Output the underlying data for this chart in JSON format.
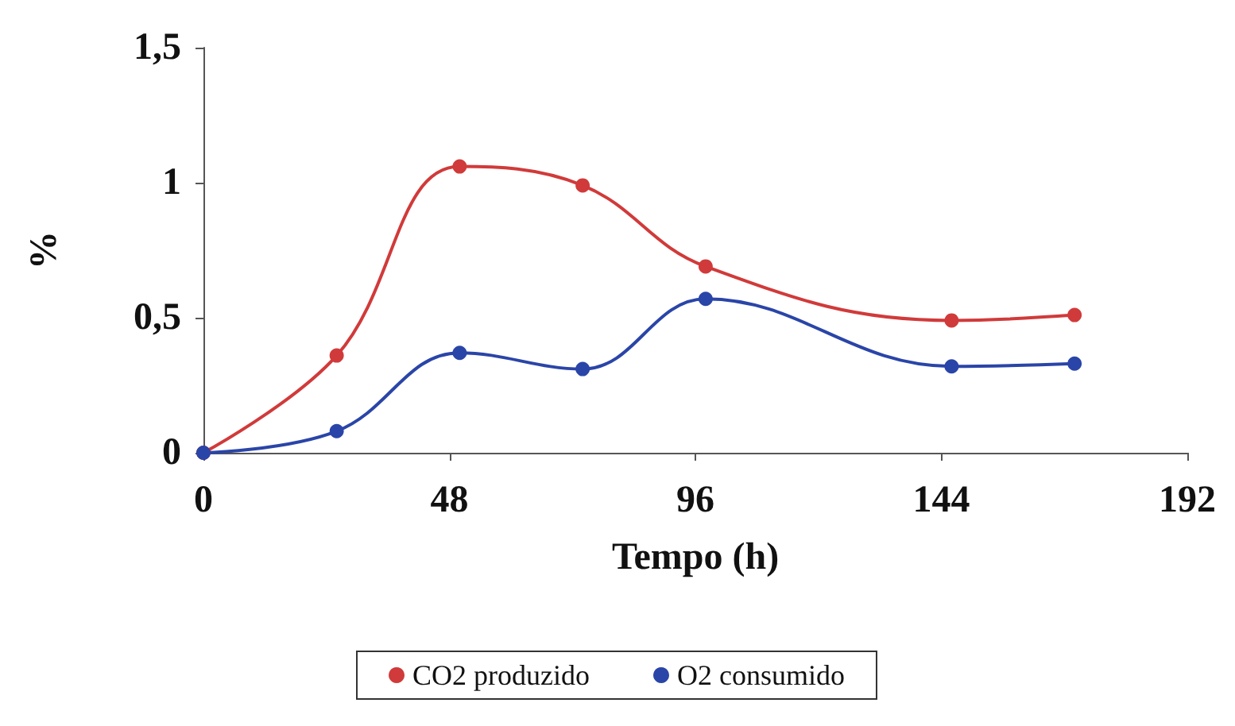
{
  "chart_data": {
    "type": "line",
    "xlabel": "Tempo (h)",
    "ylabel": "%",
    "xlim": [
      0,
      192
    ],
    "xticks": [
      0,
      48,
      96,
      144,
      192
    ],
    "ylim": [
      0,
      1.5
    ],
    "yticks": [
      0,
      {
        "value": 0.5,
        "label": "0,5"
      },
      1,
      {
        "value": 1.5,
        "label": "1,5"
      }
    ],
    "marker": "circle",
    "grid": false,
    "legend": "bottom",
    "series": [
      {
        "name": "CO2 produzido",
        "color": "#d13a3a",
        "x": [
          0,
          26,
          50,
          74,
          98,
          146,
          170
        ],
        "values": [
          0,
          0.36,
          1.06,
          0.99,
          0.69,
          0.49,
          0.51
        ]
      },
      {
        "name": "O2 consumido",
        "color": "#2a45a8",
        "x": [
          0,
          26,
          50,
          74,
          98,
          146,
          170
        ],
        "values": [
          0,
          0.08,
          0.37,
          0.31,
          0.57,
          0.32,
          0.33
        ]
      }
    ]
  }
}
